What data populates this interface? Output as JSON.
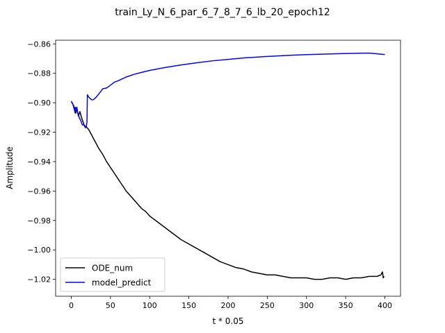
{
  "chart_data": {
    "type": "line",
    "title": "train_Ly_N_6_par_6_7_8_7_6_lb_20_epoch12",
    "xlabel": "t * 0.05",
    "ylabel": "Amplitude",
    "xlim": [
      -20,
      420
    ],
    "ylim": [
      -1.0315,
      -0.8575
    ],
    "xticks": [
      0,
      50,
      100,
      150,
      200,
      250,
      300,
      350,
      400
    ],
    "yticks": [
      -1.02,
      -1.0,
      -0.98,
      -0.96,
      -0.94,
      -0.92,
      -0.9,
      -0.88,
      -0.86
    ],
    "ytick_labels": [
      "−1.02",
      "−1.00",
      "−0.98",
      "−0.96",
      "−0.94",
      "−0.92",
      "−0.90",
      "−0.88",
      "−0.86"
    ],
    "legend_position": "lower-left",
    "grid": false,
    "series": [
      {
        "name": "ODE_num",
        "color": "#000000",
        "x": [
          0,
          3,
          5,
          7,
          9,
          11,
          13,
          15,
          17,
          19,
          20,
          22,
          25,
          30,
          35,
          40,
          45,
          50,
          55,
          60,
          65,
          70,
          75,
          80,
          85,
          90,
          95,
          100,
          110,
          120,
          130,
          140,
          150,
          160,
          170,
          180,
          190,
          200,
          210,
          220,
          230,
          240,
          250,
          260,
          270,
          280,
          290,
          300,
          310,
          320,
          330,
          340,
          350,
          360,
          370,
          380,
          390,
          395,
          397,
          398,
          399
        ],
        "y": [
          -0.899,
          -0.902,
          -0.907,
          -0.903,
          -0.909,
          -0.906,
          -0.91,
          -0.913,
          -0.916,
          -0.916,
          -0.917,
          -0.918,
          -0.921,
          -0.926,
          -0.931,
          -0.935,
          -0.94,
          -0.944,
          -0.948,
          -0.952,
          -0.956,
          -0.96,
          -0.963,
          -0.966,
          -0.969,
          -0.972,
          -0.974,
          -0.977,
          -0.981,
          -0.985,
          -0.989,
          -0.993,
          -0.996,
          -0.999,
          -1.002,
          -1.005,
          -1.008,
          -1.01,
          -1.012,
          -1.013,
          -1.015,
          -1.016,
          -1.017,
          -1.017,
          -1.018,
          -1.019,
          -1.019,
          -1.019,
          -1.02,
          -1.02,
          -1.019,
          -1.019,
          -1.02,
          -1.019,
          -1.019,
          -1.018,
          -1.018,
          -1.017,
          -1.015,
          -1.019,
          -1.018
        ]
      },
      {
        "name": "model_predict",
        "color": "#0000ff",
        "x": [
          0,
          2,
          4,
          5,
          6,
          7,
          8,
          10,
          12,
          14,
          16,
          18,
          19,
          20,
          20.5,
          22,
          24,
          26,
          28,
          30,
          32,
          35,
          38,
          40,
          45,
          50,
          55,
          60,
          70,
          80,
          90,
          100,
          120,
          140,
          160,
          180,
          200,
          220,
          250,
          280,
          300,
          330,
          350,
          380,
          400
        ],
        "y": [
          -0.899,
          -0.901,
          -0.905,
          -0.903,
          -0.907,
          -0.904,
          -0.906,
          -0.91,
          -0.912,
          -0.915,
          -0.915,
          -0.917,
          -0.916,
          -0.913,
          -0.8945,
          -0.896,
          -0.897,
          -0.898,
          -0.898,
          -0.897,
          -0.896,
          -0.894,
          -0.892,
          -0.8905,
          -0.89,
          -0.888,
          -0.886,
          -0.885,
          -0.8825,
          -0.8807,
          -0.8793,
          -0.878,
          -0.876,
          -0.8743,
          -0.8728,
          -0.8715,
          -0.8705,
          -0.8695,
          -0.8685,
          -0.8677,
          -0.8673,
          -0.8668,
          -0.8665,
          -0.8662,
          -0.8672
        ]
      }
    ]
  }
}
